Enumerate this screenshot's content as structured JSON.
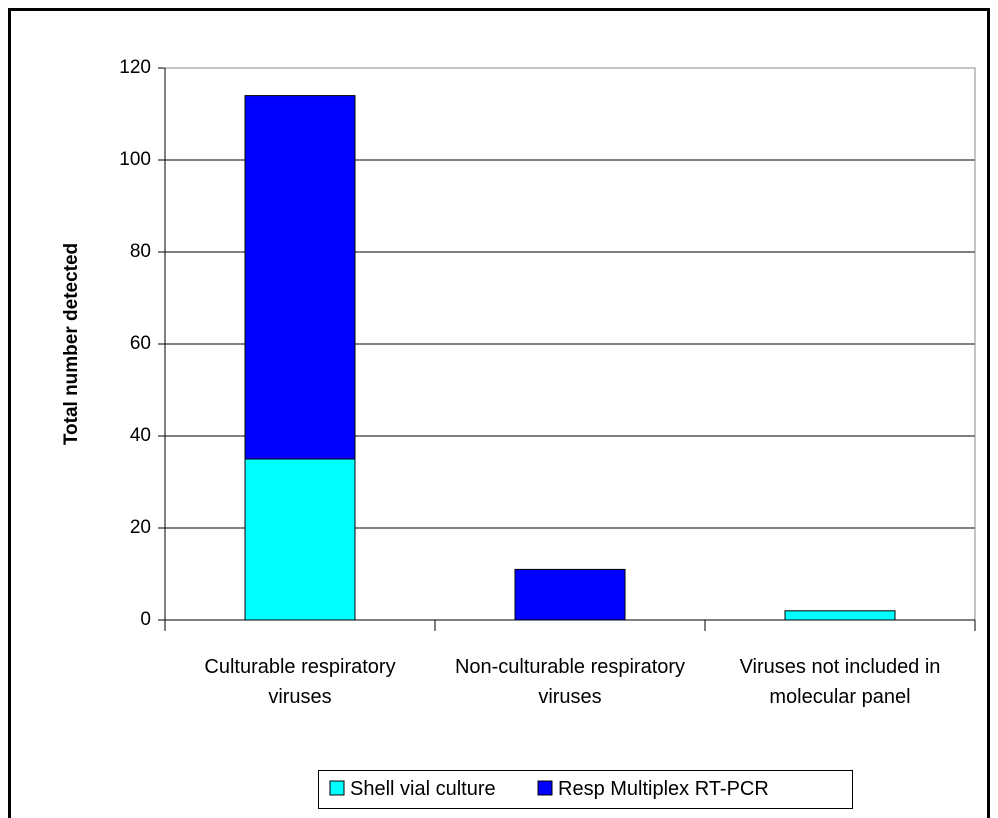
{
  "chart_data": {
    "type": "stacked-bar",
    "y_label": "Total number detected",
    "categories": [
      "Culturable respiratory viruses",
      "Non-culturable respiratory viruses",
      "Viruses not included in molecular panel"
    ],
    "series": [
      {
        "name": "Shell vial culture",
        "color": "#00ffff",
        "values": [
          35,
          0,
          2
        ]
      },
      {
        "name": "Resp Multiplex RT-PCR",
        "color": "#0000ff",
        "values": [
          79,
          11,
          0
        ]
      }
    ],
    "ylim": [
      0,
      120
    ],
    "yticks": [
      0,
      20,
      40,
      60,
      80,
      100,
      120
    ],
    "grid": true,
    "legend": "bottom"
  }
}
